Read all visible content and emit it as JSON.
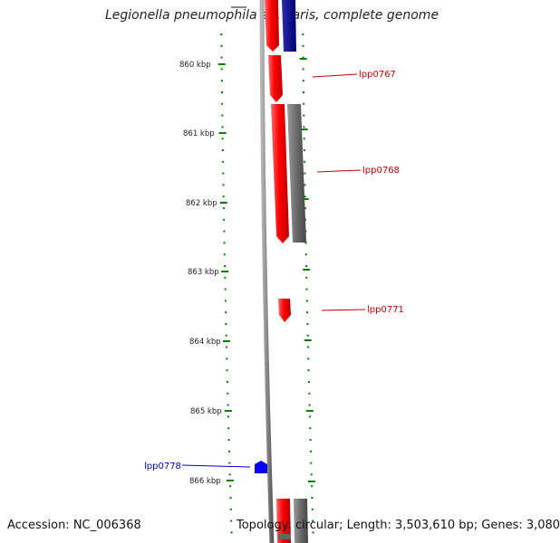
{
  "title": "Legionella pneumophila str. Paris, complete genome",
  "footer": {
    "accession": "Accession: NC_006368",
    "topology": "Topology: circular; Length: 3,503,610 bp; Genes: 3,080"
  },
  "scale": {
    "unit": "kbp",
    "ticks": [
      "860 kbp",
      "861 kbp",
      "862 kbp",
      "863 kbp",
      "864 kbp",
      "865 kbp",
      "866 kbp"
    ]
  },
  "gene_labels": [
    {
      "name": "lpp0767",
      "strand": "forward",
      "color": "#cc0000"
    },
    {
      "name": "lpp0768",
      "strand": "forward",
      "color": "#cc0000"
    },
    {
      "name": "lpp0771",
      "strand": "forward",
      "color": "#cc0000"
    },
    {
      "name": "lpp0778",
      "strand": "reverse",
      "color": "#0000cc"
    }
  ],
  "colors": {
    "forward_gene": "#ff0000",
    "reverse_gene": "#0000ff",
    "dark_reverse": "#00008b",
    "other_feature": "#666666",
    "backbone": "#888888",
    "tick": "#008000"
  }
}
